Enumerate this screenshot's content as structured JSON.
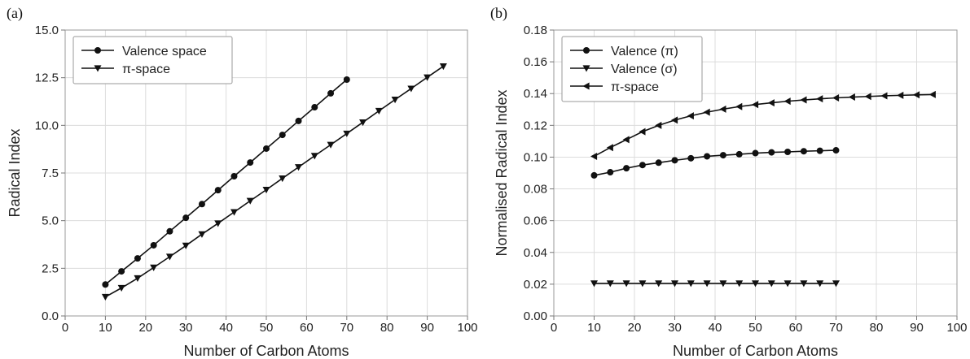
{
  "chart_data": [
    {
      "type": "line",
      "panel_label": "(a)",
      "xlabel": "Number of Carbon Atoms",
      "ylabel": "Radical Index",
      "xlim": [
        0,
        100
      ],
      "ylim": [
        0,
        15
      ],
      "xticks": [
        0,
        10,
        20,
        30,
        40,
        50,
        60,
        70,
        80,
        90,
        100
      ],
      "xtick_labels": [
        "0",
        "10",
        "20",
        "30",
        "40",
        "50",
        "60",
        "70",
        "80",
        "90",
        "100"
      ],
      "yticks": [
        0,
        2.5,
        5,
        7.5,
        10,
        12.5,
        15
      ],
      "ytick_labels": [
        "0.0",
        "2.5",
        "5.0",
        "7.5",
        "10.0",
        "12.5",
        "15.0"
      ],
      "grid": true,
      "legend_position": "top-left",
      "series": [
        {
          "name": "Valence space",
          "marker": "circle",
          "x": [
            10,
            14,
            18,
            22,
            26,
            30,
            34,
            38,
            42,
            46,
            50,
            54,
            58,
            62,
            66,
            70
          ],
          "y": [
            1.65,
            2.34,
            3.02,
            3.71,
            4.44,
            5.15,
            5.87,
            6.6,
            7.33,
            8.05,
            8.78,
            9.5,
            10.23,
            10.95,
            11.68,
            12.4
          ]
        },
        {
          "name": "π-space",
          "marker": "triangle-down",
          "x": [
            10,
            14,
            18,
            22,
            26,
            30,
            34,
            38,
            42,
            46,
            50,
            54,
            58,
            62,
            66,
            70,
            74,
            78,
            82,
            86,
            90,
            94
          ],
          "y": [
            1.0,
            1.47,
            1.98,
            2.54,
            3.11,
            3.69,
            4.29,
            4.86,
            5.45,
            6.04,
            6.62,
            7.22,
            7.81,
            8.4,
            8.98,
            9.57,
            10.16,
            10.76,
            11.35,
            11.93,
            12.52,
            13.1
          ]
        }
      ]
    },
    {
      "type": "line",
      "panel_label": "(b)",
      "xlabel": "Number of Carbon Atoms",
      "ylabel": "Normalised Radical Index",
      "xlim": [
        0,
        100
      ],
      "ylim": [
        0,
        0.18
      ],
      "xticks": [
        0,
        10,
        20,
        30,
        40,
        50,
        60,
        70,
        80,
        90,
        100
      ],
      "xtick_labels": [
        "0",
        "10",
        "20",
        "30",
        "40",
        "50",
        "60",
        "70",
        "80",
        "90",
        "100"
      ],
      "yticks": [
        0,
        0.02,
        0.04,
        0.06,
        0.08,
        0.1,
        0.12,
        0.14,
        0.16,
        0.18
      ],
      "ytick_labels": [
        "0.00",
        "0.02",
        "0.04",
        "0.06",
        "0.08",
        "0.10",
        "0.12",
        "0.14",
        "0.16",
        "0.18"
      ],
      "grid": true,
      "legend_position": "top-left",
      "series": [
        {
          "name": "Valence (π)",
          "marker": "circle",
          "x": [
            10,
            14,
            18,
            22,
            26,
            30,
            34,
            38,
            42,
            46,
            50,
            54,
            58,
            62,
            66,
            70
          ],
          "y": [
            0.0885,
            0.0905,
            0.093,
            0.095,
            0.0965,
            0.098,
            0.0993,
            0.1005,
            0.1012,
            0.1018,
            0.1025,
            0.103,
            0.1033,
            0.1037,
            0.104,
            0.1043
          ]
        },
        {
          "name": "Valence (σ)",
          "marker": "triangle-down",
          "x": [
            10,
            14,
            18,
            22,
            26,
            30,
            34,
            38,
            42,
            46,
            50,
            54,
            58,
            62,
            66,
            70
          ],
          "y": [
            0.0205,
            0.0205,
            0.0205,
            0.0205,
            0.0205,
            0.0205,
            0.0205,
            0.0205,
            0.0205,
            0.0205,
            0.0205,
            0.0205,
            0.0205,
            0.0205,
            0.0205,
            0.0205
          ]
        },
        {
          "name": "π-space",
          "marker": "triangle-left",
          "x": [
            10,
            14,
            18,
            22,
            26,
            30,
            34,
            38,
            42,
            46,
            50,
            54,
            58,
            62,
            66,
            70,
            74,
            78,
            82,
            86,
            90,
            94
          ],
          "y": [
            0.1005,
            0.106,
            0.111,
            0.116,
            0.12,
            0.1233,
            0.126,
            0.1283,
            0.1302,
            0.1318,
            0.1331,
            0.1342,
            0.1352,
            0.136,
            0.1367,
            0.1373,
            0.1378,
            0.1382,
            0.1386,
            0.1389,
            0.1392,
            0.1394
          ]
        }
      ]
    }
  ]
}
